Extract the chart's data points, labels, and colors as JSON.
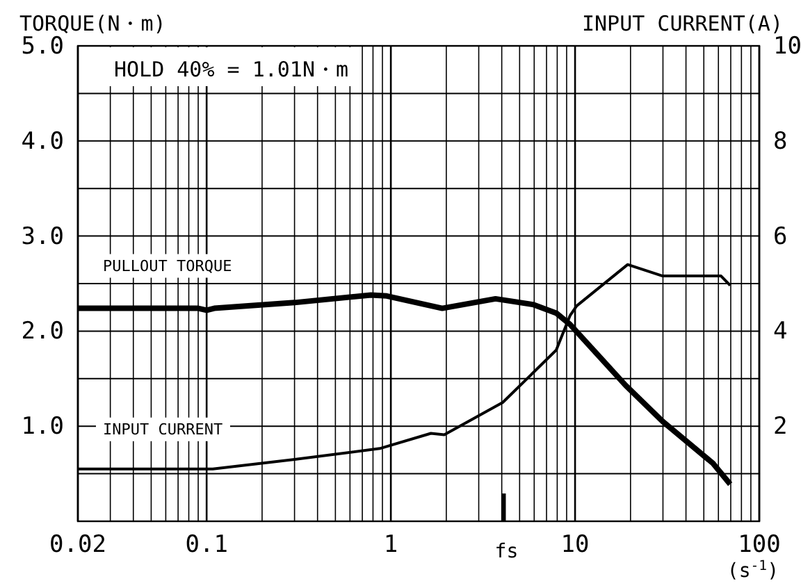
{
  "chart_data": {
    "type": "line",
    "xlabel": "(s$^{-1}$)",
    "ylabel": "TORQUE(N・m)",
    "y2label": "INPUT CURRENT(A)",
    "annotations": [
      "HOLD 40% = 1.01N・m"
    ],
    "log": "x",
    "grid": true,
    "legend": false,
    "marker": "none",
    "xlim": [
      0.02,
      100
    ],
    "xticks": [
      {
        "value": 0.02,
        "label": "0.02"
      },
      {
        "value": 0.03,
        "label": null
      },
      {
        "value": 0.04,
        "label": null
      },
      {
        "value": 0.05,
        "label": null
      },
      {
        "value": 0.06,
        "label": null
      },
      {
        "value": 0.07,
        "label": null
      },
      {
        "value": 0.08,
        "label": null
      },
      {
        "value": 0.09,
        "label": null
      },
      {
        "value": 0.1,
        "label": "0.1"
      },
      {
        "value": 0.2,
        "label": null
      },
      {
        "value": 0.3,
        "label": null
      },
      {
        "value": 0.4,
        "label": null
      },
      {
        "value": 0.5,
        "label": null
      },
      {
        "value": 0.6,
        "label": null
      },
      {
        "value": 0.7,
        "label": null
      },
      {
        "value": 0.8,
        "label": null
      },
      {
        "value": 0.9,
        "label": null
      },
      1,
      {
        "value": 2,
        "label": null
      },
      {
        "value": 3,
        "label": null
      },
      {
        "value": 4,
        "label": null
      },
      {
        "value": 5,
        "label": null
      },
      {
        "value": 6,
        "label": null
      },
      {
        "value": 7,
        "label": null
      },
      {
        "value": 8,
        "label": null
      },
      {
        "value": 9,
        "label": null
      },
      10,
      {
        "value": 20,
        "label": null
      },
      {
        "value": 30,
        "label": null
      },
      {
        "value": 40,
        "label": null
      },
      {
        "value": 50,
        "label": null
      },
      {
        "value": 60,
        "label": null
      },
      {
        "value": 70,
        "label": null
      },
      {
        "value": 80,
        "label": null
      },
      {
        "value": 90,
        "label": null
      },
      100
    ],
    "ylim": [
      0,
      5
    ],
    "yticks": [
      {
        "value": 0,
        "label": null
      },
      {
        "value": 0.5,
        "label": null
      },
      {
        "value": 1,
        "label": "1.0"
      },
      {
        "value": 1.5,
        "label": null
      },
      {
        "value": 2,
        "label": "2.0"
      },
      {
        "value": 2.5,
        "label": null
      },
      {
        "value": 3,
        "label": "3.0"
      },
      {
        "value": 3.5,
        "label": null
      },
      {
        "value": 4,
        "label": "4.0"
      },
      {
        "value": 4.5,
        "label": null
      },
      {
        "value": 5,
        "label": "5.0"
      }
    ],
    "y2lim": [
      0,
      10
    ],
    "y2ticks": [
      2,
      4,
      6,
      8,
      10
    ],
    "ref_lines": [
      {
        "axis": "x",
        "value": 4.1,
        "label": "fs",
        "color": "#000000"
      }
    ],
    "series": [
      {
        "name": "PULLOUT TORQUE",
        "color": "#000000",
        "x": [
          0.02,
          0.09,
          0.1,
          0.11,
          0.3,
          0.78,
          0.95,
          1.9,
          3.7,
          5.9,
          7.9,
          9.4,
          18.8,
          29.9,
          56,
          69.5
        ],
        "values": [
          2.24,
          2.24,
          2.22,
          2.24,
          2.3,
          2.38,
          2.37,
          2.24,
          2.34,
          2.28,
          2.19,
          2.07,
          1.43,
          1.05,
          0.61,
          0.39
        ]
      },
      {
        "name": "INPUT CURRENT",
        "color": "#000000",
        "axis": "y2",
        "x": [
          0.02,
          0.108,
          0.3,
          0.87,
          1.65,
          1.95,
          4.05,
          7.9,
          9.4,
          10.2,
          19.3,
          29.9,
          62,
          69.5
        ],
        "values": [
          1.1,
          1.1,
          1.3,
          1.53,
          1.85,
          1.82,
          2.5,
          3.6,
          4.33,
          4.53,
          5.4,
          5.16,
          5.16,
          4.96
        ]
      }
    ]
  }
}
